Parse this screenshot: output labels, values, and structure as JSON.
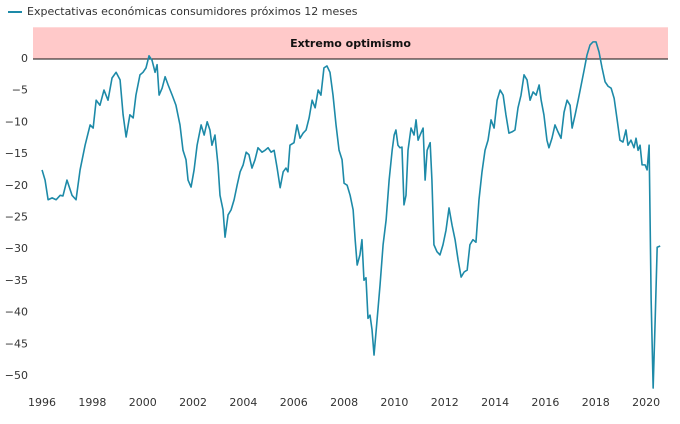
{
  "chart_data": {
    "type": "line",
    "series": [
      {
        "name": "Expectativas económicas consumidores próximos 12 meses",
        "color": "#1d8aa8",
        "values": [
          -17.5,
          -19.1,
          -22.2,
          -21.9,
          -22.2,
          -21.5,
          -21.6,
          -19.1,
          -21.5,
          -22.2,
          -17.5,
          -13.6,
          -10.4,
          -10.9,
          -6.5,
          -7.3,
          -4.9,
          -6.5,
          -3.0,
          -2.1,
          -3.3,
          -8.8,
          -12.3,
          -8.8,
          -9.3,
          -5.7,
          -2.5,
          -2.1,
          -1.4,
          0.5,
          -0.2,
          -2.1,
          -0.9,
          -5.7,
          -4.6,
          -2.8,
          -4.1,
          -5.7,
          -7.3,
          -10.4,
          -14.4,
          -15.9,
          -19.1,
          -20.2,
          -17.5,
          -13.6,
          -10.4,
          -12.0,
          -9.9,
          -11.2,
          -13.6,
          -12.0,
          -16.7,
          -21.5,
          -23.8,
          -28.1,
          -24.6,
          -23.8,
          -22.2,
          -19.9,
          -17.8,
          -16.7,
          -14.7,
          -15.1,
          -17.2,
          -15.9,
          -14.0,
          -14.7,
          -14.4,
          -14.0,
          -14.7,
          -14.4,
          -17.2,
          -20.3,
          -17.8,
          -17.2,
          -17.8,
          -13.6,
          -13.2,
          -10.4,
          -12.5,
          -11.7,
          -11.2,
          -9.3,
          -6.5,
          -7.7,
          -4.9,
          -5.7,
          -1.4,
          -1.1,
          -2.1,
          -5.7,
          -10.4,
          -14.4,
          -15.9,
          -19.6,
          -19.9,
          -21.5,
          -23.8,
          -28.5,
          -32.5,
          -30.9,
          -28.5,
          -34.9,
          -34.5,
          -40.9,
          -40.4,
          -42.7,
          -46.7,
          -41.2,
          -35.6,
          -29.3,
          -25.4,
          -19.1,
          -14.4,
          -12.0,
          -11.2,
          -13.6,
          -14.0,
          -13.9,
          -23.0,
          -21.5,
          -14.4,
          -10.9,
          -12.0,
          -9.6,
          -12.8,
          -12.0,
          -10.9,
          -19.1,
          -14.4,
          -13.2,
          -19.1,
          -29.3,
          -30.4,
          -30.9,
          -29.3,
          -27.0,
          -23.5,
          -26.2,
          -28.5,
          -31.7,
          -34.4,
          -33.6,
          -33.3,
          -29.3,
          -28.5,
          -28.9,
          -22.2,
          -17.8,
          -14.4,
          -12.8,
          -9.6,
          -10.9,
          -6.5,
          -4.9,
          -5.7,
          -8.8,
          -11.7,
          -11.5,
          -11.2,
          -7.7,
          -5.7,
          -2.5,
          -3.3,
          -6.5,
          -5.2,
          -5.7,
          -4.1,
          -6.5,
          -8.8,
          -12.8,
          -14.0,
          -12.5,
          -10.4,
          -11.5,
          -12.5,
          -8.4,
          -6.5,
          -7.3,
          -10.9,
          -8.8,
          -6.5,
          -4.1,
          -1.7,
          0.6,
          2.2,
          2.7,
          2.7,
          1.1,
          -1.4,
          -3.6,
          -4.3,
          -4.6,
          -6.2,
          -9.6,
          -12.8,
          -13.1,
          -11.2,
          -13.6,
          -12.8,
          -14.0,
          -12.5,
          -14.4,
          -13.6,
          -16.7,
          -16.7,
          -17.5,
          -13.6,
          -38.0,
          -51.9,
          -41.2,
          -29.7,
          -29.5
        ]
      }
    ],
    "x": [
      1996.0,
      1996.12,
      1996.24,
      1996.4,
      1996.56,
      1996.72,
      1996.83,
      1996.99,
      1997.19,
      1997.35,
      1997.51,
      1997.71,
      1997.91,
      1998.03,
      1998.15,
      1998.3,
      1998.46,
      1998.62,
      1998.78,
      1998.94,
      1999.1,
      1999.22,
      1999.34,
      1999.49,
      1999.62,
      1999.73,
      1999.89,
      2000.01,
      2000.13,
      2000.25,
      2000.37,
      2000.49,
      2000.57,
      2000.65,
      2000.77,
      2000.89,
      2001.01,
      2001.17,
      2001.32,
      2001.48,
      2001.6,
      2001.72,
      2001.8,
      2001.92,
      2002.04,
      2002.16,
      2002.32,
      2002.44,
      2002.56,
      2002.67,
      2002.75,
      2002.87,
      2002.99,
      2003.07,
      2003.19,
      2003.27,
      2003.39,
      2003.51,
      2003.63,
      2003.75,
      2003.87,
      2003.99,
      2004.11,
      2004.22,
      2004.34,
      2004.46,
      2004.58,
      2004.74,
      2004.86,
      2004.98,
      2005.1,
      2005.22,
      2005.34,
      2005.46,
      2005.58,
      2005.69,
      2005.77,
      2005.85,
      2006.01,
      2006.13,
      2006.25,
      2006.37,
      2006.49,
      2006.61,
      2006.73,
      2006.85,
      2006.97,
      2007.08,
      2007.2,
      2007.32,
      2007.44,
      2007.56,
      2007.68,
      2007.8,
      2007.92,
      2008.0,
      2008.12,
      2008.24,
      2008.36,
      2008.44,
      2008.52,
      2008.63,
      2008.71,
      2008.79,
      2008.87,
      2008.95,
      2009.03,
      2009.11,
      2009.19,
      2009.31,
      2009.43,
      2009.55,
      2009.67,
      2009.79,
      2009.91,
      2009.99,
      2010.06,
      2010.14,
      2010.22,
      2010.3,
      2010.38,
      2010.46,
      2010.54,
      2010.66,
      2010.78,
      2010.86,
      2010.94,
      2011.02,
      2011.14,
      2011.22,
      2011.3,
      2011.42,
      2011.49,
      2011.57,
      2011.69,
      2011.81,
      2011.93,
      2012.05,
      2012.17,
      2012.29,
      2012.41,
      2012.53,
      2012.65,
      2012.77,
      2012.89,
      2013.0,
      2013.12,
      2013.24,
      2013.36,
      2013.48,
      2013.6,
      2013.72,
      2013.84,
      2013.96,
      2014.08,
      2014.2,
      2014.32,
      2014.43,
      2014.55,
      2014.67,
      2014.79,
      2014.91,
      2015.03,
      2015.15,
      2015.27,
      2015.39,
      2015.51,
      2015.63,
      2015.75,
      2015.83,
      2015.94,
      2016.06,
      2016.14,
      2016.26,
      2016.38,
      2016.5,
      2016.62,
      2016.74,
      2016.86,
      2016.98,
      2017.06,
      2017.18,
      2017.3,
      2017.42,
      2017.54,
      2017.65,
      2017.77,
      2017.89,
      2018.01,
      2018.13,
      2018.25,
      2018.37,
      2018.49,
      2018.61,
      2018.73,
      2018.85,
      2018.96,
      2019.08,
      2019.2,
      2019.28,
      2019.4,
      2019.52,
      2019.6,
      2019.68,
      2019.76,
      2019.84,
      2019.96,
      2020.04,
      2020.12,
      2020.2,
      2020.28,
      2020.36,
      2020.44,
      2020.56
    ],
    "xlim": [
      1995.64,
      2020.87
    ],
    "xticks": [
      1996,
      1998,
      2000,
      2002,
      2004,
      2006,
      2008,
      2010,
      2012,
      2014,
      2016,
      2018,
      2020
    ],
    "ylim": [
      -53,
      5
    ],
    "yticks": [
      0,
      {
        "value": -5,
        "label": "−5"
      },
      {
        "value": -10,
        "label": "−10"
      },
      {
        "value": -15,
        "label": "−15"
      },
      {
        "value": -20,
        "label": "−20"
      },
      {
        "value": -25,
        "label": "−25"
      },
      {
        "value": -30,
        "label": "−30"
      },
      {
        "value": -35,
        "label": "−35"
      },
      {
        "value": -40,
        "label": "−40"
      },
      {
        "value": -45,
        "label": "−45"
      },
      {
        "value": -50,
        "label": "−50"
      }
    ],
    "band": {
      "from": 0,
      "to": 5,
      "label": "Extremo optimismo",
      "color": "#ffc9c9"
    },
    "legend": "top-left"
  }
}
